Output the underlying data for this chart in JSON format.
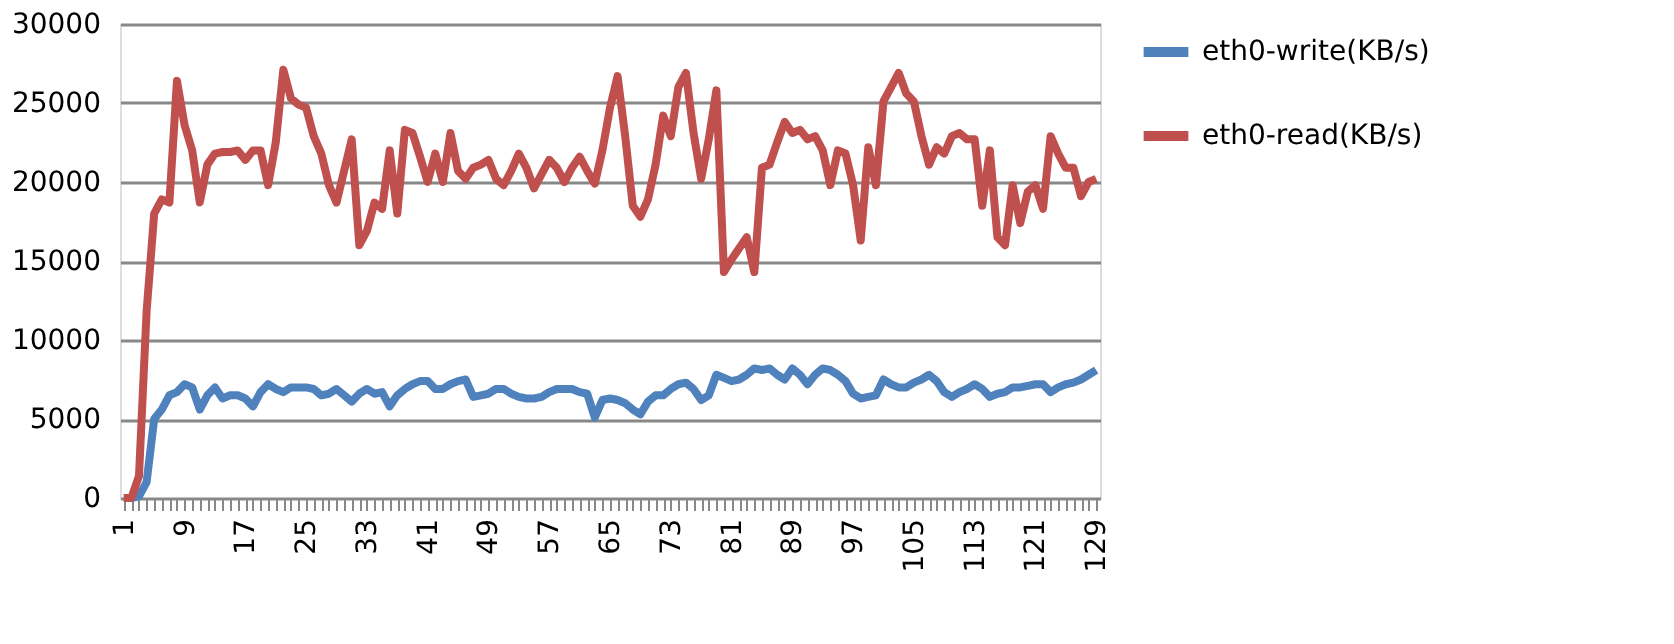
{
  "chart_data": {
    "type": "line",
    "categories": [
      "1",
      null,
      null,
      null,
      null,
      null,
      null,
      null,
      "9",
      null,
      null,
      null,
      null,
      null,
      null,
      null,
      "17",
      null,
      null,
      null,
      null,
      null,
      null,
      null,
      "25",
      null,
      null,
      null,
      null,
      null,
      null,
      null,
      "33",
      null,
      null,
      null,
      null,
      null,
      null,
      null,
      "41",
      null,
      null,
      null,
      null,
      null,
      null,
      null,
      "49",
      null,
      null,
      null,
      null,
      null,
      null,
      null,
      "57",
      null,
      null,
      null,
      null,
      null,
      null,
      null,
      "65",
      null,
      null,
      null,
      null,
      null,
      null,
      null,
      "73",
      null,
      null,
      null,
      null,
      null,
      null,
      null,
      "81",
      null,
      null,
      null,
      null,
      null,
      null,
      null,
      "89",
      null,
      null,
      null,
      null,
      null,
      null,
      null,
      "97",
      null,
      null,
      null,
      null,
      null,
      null,
      null,
      "105",
      null,
      null,
      null,
      null,
      null,
      null,
      null,
      "113",
      null,
      null,
      null,
      null,
      null,
      null,
      null,
      "121",
      null,
      null,
      null,
      null,
      null,
      null,
      null,
      "129"
    ],
    "series": [
      {
        "name": "eth0-write(KB/s)",
        "color": "#4f81bd",
        "values": [
          0,
          0,
          100,
          1000,
          5000,
          5600,
          6500,
          6700,
          7200,
          7000,
          5600,
          6500,
          7000,
          6300,
          6500,
          6500,
          6300,
          5800,
          6700,
          7200,
          6900,
          6700,
          7000,
          7000,
          7000,
          6900,
          6500,
          6600,
          6900,
          6500,
          6100,
          6600,
          6900,
          6600,
          6700,
          5800,
          6500,
          6900,
          7200,
          7400,
          7400,
          6900,
          6900,
          7200,
          7400,
          7500,
          6400,
          6500,
          6600,
          6900,
          6900,
          6600,
          6400,
          6300,
          6300,
          6400,
          6700,
          6900,
          6900,
          6900,
          6700,
          6600,
          5100,
          6200,
          6300,
          6200,
          6000,
          5600,
          5300,
          6100,
          6500,
          6500,
          6900,
          7200,
          7300,
          6900,
          6200,
          6500,
          7800,
          7600,
          7400,
          7500,
          7800,
          8200,
          8100,
          8200,
          7800,
          7500,
          8200,
          7800,
          7200,
          7800,
          8200,
          8100,
          7800,
          7400,
          6600,
          6300,
          6400,
          6500,
          7500,
          7200,
          7000,
          7000,
          7300,
          7500,
          7800,
          7400,
          6700,
          6400,
          6700,
          6900,
          7200,
          6900,
          6400,
          6600,
          6700,
          7000,
          7000,
          7100,
          7200,
          7200,
          6700,
          7000,
          7200,
          7300,
          7500,
          7800,
          8100
        ]
      },
      {
        "name": "eth0-read(KB/s)",
        "color": "#c0504d",
        "values": [
          0,
          0,
          1400,
          11800,
          18000,
          18900,
          18700,
          26400,
          23600,
          22000,
          18700,
          21100,
          21800,
          21900,
          21900,
          22000,
          21400,
          22000,
          22000,
          19800,
          22500,
          27100,
          25300,
          24900,
          24700,
          22900,
          21800,
          19800,
          18700,
          20700,
          22700,
          16000,
          16900,
          18700,
          18300,
          22000,
          18000,
          23300,
          23100,
          21600,
          20000,
          21800,
          20000,
          23100,
          20700,
          20200,
          20900,
          21100,
          21400,
          20200,
          19800,
          20700,
          21800,
          20900,
          19600,
          20500,
          21400,
          20900,
          20000,
          20900,
          21600,
          20700,
          19900,
          22000,
          24700,
          26700,
          22900,
          18500,
          17800,
          18900,
          21100,
          24200,
          22900,
          26000,
          26900,
          23100,
          20200,
          22700,
          25800,
          14300,
          15100,
          15800,
          16500,
          14300,
          20900,
          21100,
          22500,
          23800,
          23100,
          23300,
          22700,
          22900,
          22000,
          19800,
          22000,
          21800,
          19800,
          16300,
          22200,
          19800,
          25100,
          26000,
          26900,
          25600,
          25100,
          22900,
          21100,
          22200,
          21800,
          22900,
          23100,
          22700,
          22700,
          18500,
          22000,
          16500,
          16000,
          19800,
          17400,
          19400,
          19800,
          18300,
          22900,
          21800,
          20900,
          20900,
          19100,
          20000,
          20200
        ]
      }
    ],
    "ylim": [
      0,
      30000
    ],
    "yticks": [
      0,
      5000,
      10000,
      15000,
      20000,
      25000,
      30000
    ],
    "grid": "y",
    "legend": "right",
    "marker": "none",
    "line_style": "solid"
  }
}
